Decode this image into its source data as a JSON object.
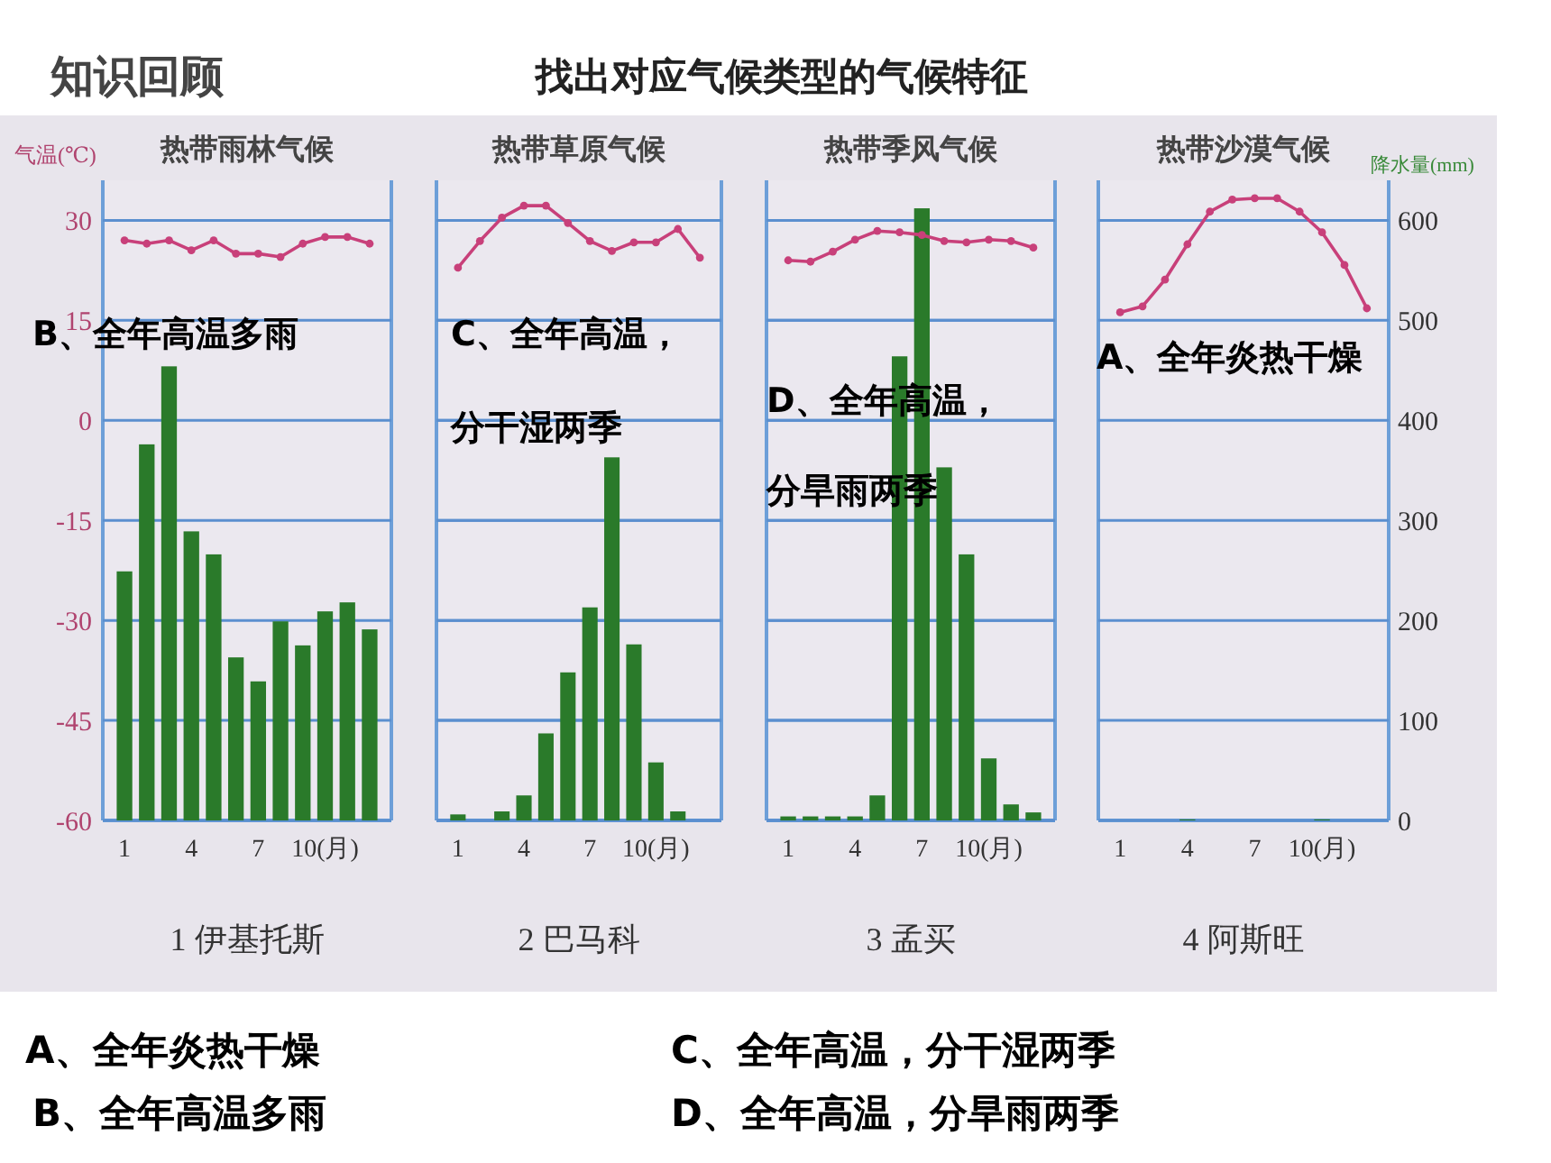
{
  "chart_data": [
    {
      "type": "bar",
      "title": "热带雨林气候",
      "xlabel": "1 伊基托斯",
      "ylabel": "气温(℃)",
      "categories": [
        "1",
        null,
        null,
        "4",
        null,
        null,
        "7",
        null,
        null,
        "10(月)",
        null,
        null
      ],
      "series": [
        {
          "type": "bar",
          "axis": "y2",
          "color": "#2a7a2a",
          "values": [
            249,
            376,
            454,
            289,
            266,
            163,
            139,
            199,
            175,
            209,
            218,
            191
          ]
        },
        {
          "type": "line",
          "color": "#c8407a",
          "values": [
            27,
            26.5,
            27,
            25.5,
            27,
            25,
            25,
            24.5,
            26.5,
            27.5,
            27.5,
            26.5
          ]
        }
      ],
      "ylim": [
        -60,
        36
      ],
      "yticks": [
        -60,
        -45,
        -30,
        -15,
        0,
        15,
        30
      ],
      "y2lim": [
        0,
        640
      ],
      "grid": "y",
      "marker": "circle",
      "tick_labels": "xy",
      "annotations": [
        "B、全年高温多雨"
      ]
    },
    {
      "type": "bar",
      "title": "热带草原气候",
      "xlabel": "2 巴马科",
      "categories": [
        "1",
        null,
        null,
        "4",
        null,
        null,
        "7",
        null,
        null,
        "10(月)",
        null,
        null
      ],
      "series": [
        {
          "type": "bar",
          "axis": "y2",
          "color": "#2a7a2a",
          "values": [
            6,
            0,
            9,
            25,
            87,
            148,
            213,
            363,
            176,
            58,
            9,
            0
          ]
        },
        {
          "type": "line",
          "color": "#c8407a",
          "values": [
            22.9,
            26.9,
            30.4,
            32.2,
            32.2,
            29.6,
            26.9,
            25.4,
            26.7,
            26.7,
            28.7,
            24.4
          ]
        }
      ],
      "ylim": [
        -60,
        36
      ],
      "yticks": [
        -60,
        -45,
        -30,
        -15,
        0,
        15,
        30
      ],
      "y2lim": [
        0,
        640
      ],
      "y2ticks": [
        0,
        100,
        200,
        300,
        400,
        500,
        600
      ],
      "grid": "y",
      "marker": "circle",
      "tick_labels": "x",
      "annotations": [
        "C、全年高温，",
        "分干湿两季"
      ]
    },
    {
      "type": "bar",
      "title": "热带季风气候",
      "xlabel": "3 孟买",
      "categories": [
        "1",
        null,
        null,
        "4",
        null,
        null,
        "7",
        null,
        null,
        "10(月)",
        null,
        null
      ],
      "series": [
        {
          "type": "bar",
          "axis": "y2",
          "color": "#2a7a2a",
          "values": [
            4,
            4,
            4,
            4,
            25,
            464,
            612,
            353,
            266,
            62,
            16,
            8
          ]
        },
        {
          "type": "line",
          "color": "#c8407a",
          "values": [
            24,
            23.8,
            25.3,
            27.1,
            28.4,
            28.2,
            27.8,
            26.9,
            26.7,
            27.1,
            26.9,
            25.9
          ]
        }
      ],
      "ylim": [
        -60,
        36
      ],
      "yticks": [
        -60,
        -45,
        -30,
        -15,
        0,
        15,
        30
      ],
      "y2lim": [
        0,
        640
      ],
      "y2ticks": [
        0,
        100,
        200,
        300,
        400,
        500,
        600
      ],
      "grid": "y",
      "marker": "circle",
      "tick_labels": "x",
      "annotations": [
        "D、全年高温，",
        "分旱雨两季"
      ]
    },
    {
      "type": "bar",
      "title": "热带沙漠气候",
      "xlabel": "4 阿斯旺",
      "y2label": "降水量(mm)",
      "categories": [
        "1",
        null,
        null,
        "4",
        null,
        null,
        "7",
        null,
        null,
        "10(月)",
        null,
        null
      ],
      "series": [
        {
          "type": "bar",
          "axis": "y2",
          "color": "#2a7a2a",
          "values": [
            0,
            0,
            0,
            1,
            0,
            0,
            0,
            0,
            0,
            1,
            0,
            0
          ]
        },
        {
          "type": "line",
          "color": "#c8407a",
          "values": [
            16.2,
            17.1,
            21.1,
            26.4,
            31.3,
            33.1,
            33.3,
            33.3,
            31.3,
            28.2,
            23.3,
            16.8
          ]
        }
      ],
      "ylim": [
        -60,
        36
      ],
      "y2lim": [
        0,
        640
      ],
      "y2ticks": [
        0,
        100,
        200,
        300,
        400,
        500,
        600
      ],
      "grid": "y",
      "marker": "circle",
      "annotations": [
        "A、全年炎热干燥"
      ]
    },
    {
      "type": "other",
      "title": "找出对应气候类型的气候特征",
      "annotations": [
        "知识回顾",
        "A、全年炎热干燥",
        "B、全年高温多雨",
        "C、全年高温，分干湿两季",
        "D、全年高温，分旱雨两季"
      ]
    }
  ]
}
